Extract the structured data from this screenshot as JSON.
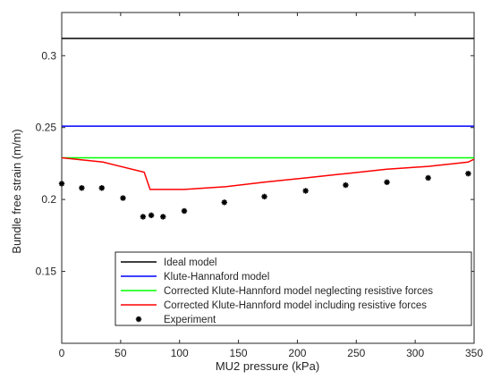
{
  "chart_data": {
    "type": "line",
    "title": "",
    "xlabel": "MU2 pressure (kPa)",
    "ylabel": "Bundle free strain (m/m)",
    "xlim": [
      0,
      350
    ],
    "ylim": [
      0.1,
      0.33
    ],
    "xticks": [
      0,
      50,
      100,
      150,
      200,
      250,
      300,
      350
    ],
    "xtick_labels": [
      "0",
      "50",
      "100",
      "150",
      "200",
      "250",
      "300",
      "350"
    ],
    "yticks": [
      0.15,
      0.2,
      0.25,
      0.3
    ],
    "ytick_labels": [
      "0.15",
      "0.2",
      "0.25",
      "0.3"
    ],
    "grid": false,
    "legend_position": "bottom-center",
    "series": [
      {
        "name": "Ideal model",
        "color": "#000000",
        "style": "line",
        "x": [
          0,
          350
        ],
        "y": [
          0.312,
          0.312
        ]
      },
      {
        "name": "Klute-Hannaford model",
        "color": "#0000ff",
        "style": "line",
        "x": [
          0,
          350
        ],
        "y": [
          0.251,
          0.251
        ]
      },
      {
        "name": "Corrected Klute-Hannford model neglecting resistive forces",
        "color": "#00ff00",
        "style": "line",
        "x": [
          0,
          350
        ],
        "y": [
          0.229,
          0.229
        ]
      },
      {
        "name": "Corrected Klute-Hannford model including resistive forces",
        "color": "#ff0000",
        "style": "line",
        "x": [
          0,
          35,
          70,
          75,
          104,
          140,
          172,
          207,
          241,
          276,
          311,
          345,
          350
        ],
        "y": [
          0.229,
          0.226,
          0.219,
          0.207,
          0.207,
          0.209,
          0.212,
          0.215,
          0.218,
          0.221,
          0.223,
          0.226,
          0.228
        ]
      },
      {
        "name": "Experiment",
        "color": "#000000",
        "style": "marker",
        "x": [
          0,
          17,
          34,
          52,
          69,
          76,
          86,
          104,
          138,
          172,
          207,
          241,
          276,
          311,
          345
        ],
        "y": [
          0.211,
          0.208,
          0.208,
          0.201,
          0.188,
          0.189,
          0.188,
          0.192,
          0.198,
          0.202,
          0.206,
          0.21,
          0.212,
          0.215,
          0.218
        ]
      }
    ]
  }
}
